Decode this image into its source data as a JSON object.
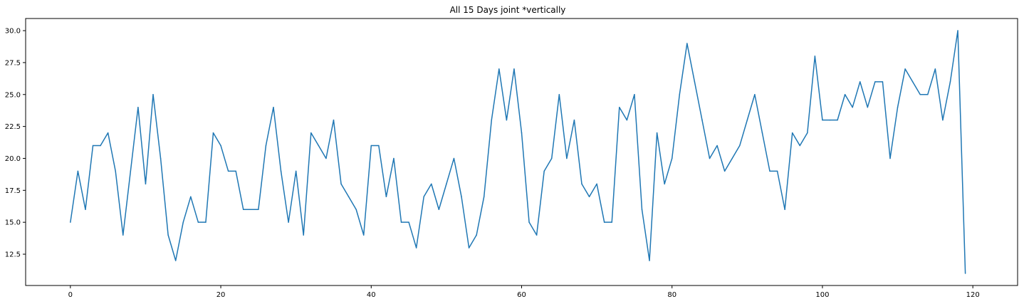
{
  "chart_data": {
    "type": "line",
    "title": "All 15 Days joint *vertically",
    "xlabel": "",
    "ylabel": "",
    "xlim": [
      -5.95,
      125.95
    ],
    "ylim": [
      10.05,
      30.95
    ],
    "xticks": [
      0,
      20,
      40,
      60,
      80,
      100,
      120
    ],
    "yticks": [
      12.5,
      15.0,
      17.5,
      20.0,
      22.5,
      25.0,
      27.5,
      30.0
    ],
    "xtick_labels": [
      "0",
      "20",
      "40",
      "60",
      "80",
      "100",
      "120"
    ],
    "ytick_labels": [
      "12.5",
      "15.0",
      "17.5",
      "20.0",
      "22.5",
      "25.0",
      "27.5",
      "30.0"
    ],
    "grid": false,
    "color": "#1f77b4",
    "series": [
      {
        "values": [
          15,
          19,
          16,
          21,
          21,
          22,
          19,
          14,
          19,
          24,
          18,
          25,
          20,
          14,
          12,
          15,
          17,
          15,
          15,
          22,
          21,
          19,
          19,
          16,
          16,
          16,
          21,
          24,
          19,
          15,
          19,
          14,
          22,
          21,
          20,
          23,
          18,
          17,
          16,
          14,
          21,
          21,
          17,
          20,
          15,
          15,
          13,
          17,
          18,
          16,
          18,
          20,
          17,
          13,
          14,
          17,
          23,
          27,
          23,
          27,
          22,
          15,
          14,
          19,
          20,
          25,
          20,
          23,
          18,
          17,
          18,
          15,
          15,
          24,
          23,
          25,
          16,
          12,
          22,
          18,
          20,
          25,
          29,
          26,
          23,
          20,
          21,
          19,
          20,
          21,
          23,
          25,
          22,
          19,
          19,
          16,
          22,
          21,
          22,
          28,
          23,
          23,
          23,
          25,
          24,
          26,
          24,
          26,
          26,
          20,
          24,
          27,
          26,
          25,
          25,
          27,
          23,
          26,
          30,
          11
        ]
      }
    ]
  }
}
